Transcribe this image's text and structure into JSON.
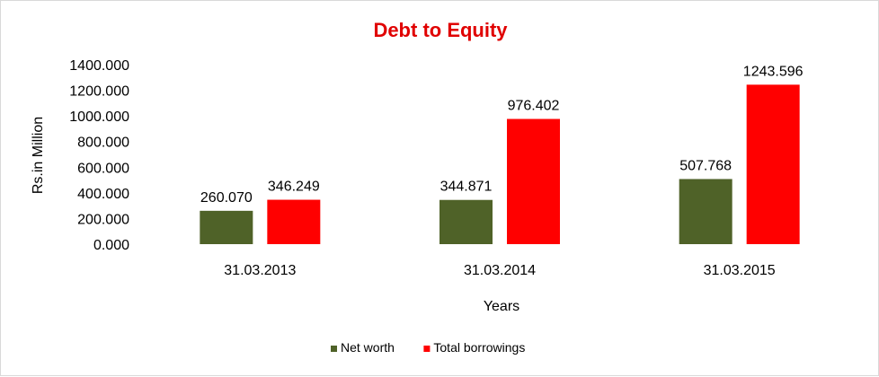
{
  "chart_data": {
    "type": "bar",
    "title": "Debt to Equity",
    "xlabel": "Years",
    "ylabel": "Rs.in Million",
    "categories": [
      "31.03.2013",
      "31.03.2014",
      "31.03.2015"
    ],
    "series": [
      {
        "name": "Net worth",
        "values": [
          260.07,
          344.871,
          507.768
        ],
        "value_labels": [
          "260.070",
          "344.871",
          "507.768"
        ],
        "color": "#4f6228"
      },
      {
        "name": "Total borrowings",
        "values": [
          346.249,
          976.402,
          1243.596
        ],
        "value_labels": [
          "346.249",
          "976.402",
          "1243.596"
        ],
        "color": "#ff0000"
      }
    ],
    "ylim": [
      0,
      1400
    ],
    "yticks": [
      "0.000",
      "200.000",
      "400.000",
      "600.000",
      "800.000",
      "1000.000",
      "1200.000",
      "1400.000"
    ],
    "grid": false,
    "legend_position": "bottom",
    "title_color": "#e00000"
  }
}
